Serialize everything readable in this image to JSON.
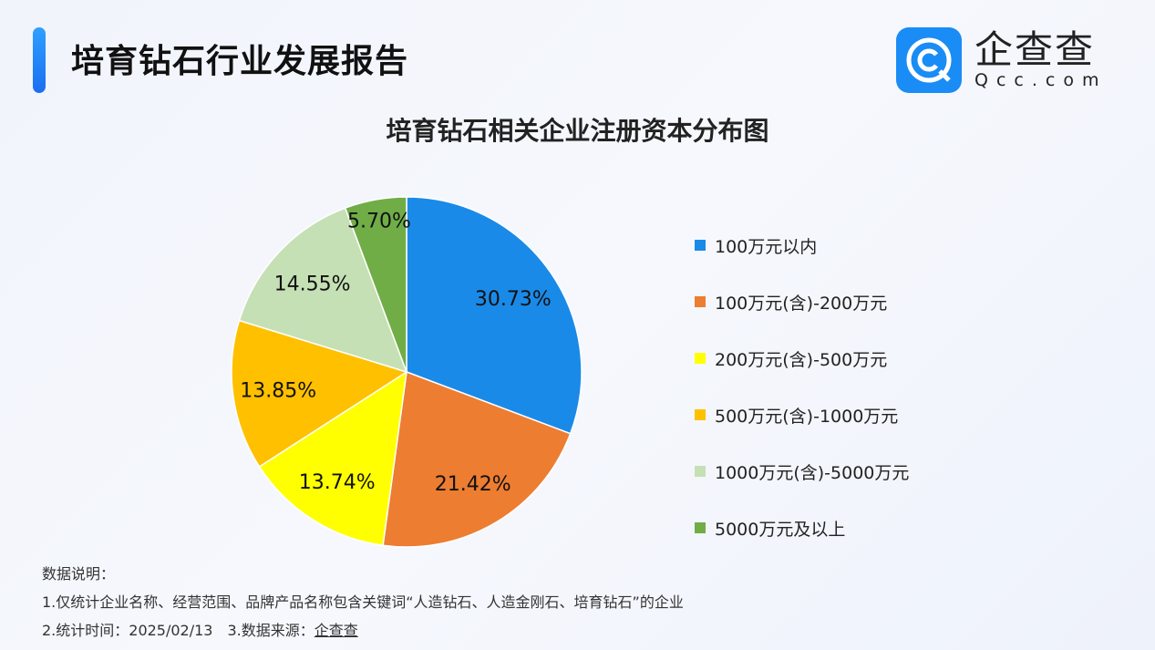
{
  "header": {
    "title": "培育钻石行业发展报告"
  },
  "logo": {
    "cn": "企查查",
    "en": "Qcc.com",
    "icon": "qcc-logo-icon"
  },
  "chart_data": {
    "type": "pie",
    "title": "培育钻石相关企业注册资本分布图",
    "legend_position": "right",
    "categories": [
      "100万元以内",
      "100万元(含)-200万元",
      "200万元(含)-500万元",
      "500万元(含)-1000万元",
      "1000万元(含)-5000万元",
      "5000万元及以上"
    ],
    "values": [
      30.73,
      21.42,
      13.74,
      13.85,
      14.55,
      5.7
    ],
    "labels": [
      "30.73%",
      "21.42%",
      "13.74%",
      "13.85%",
      "14.55%",
      "5.70%"
    ],
    "colors": [
      "#1a8ae8",
      "#ed7d31",
      "#ffff00",
      "#ffc000",
      "#c5e0b4",
      "#70ad47"
    ]
  },
  "notes": {
    "heading": "数据说明：",
    "line1": "1.仅统计企业名称、经营范围、品牌产品名称包含关键词“人造钻石、人造金刚石、培育钻石”的企业",
    "line2_prefix": "2.统计时间：2025/02/13　3.数据来源：",
    "source": "企查查"
  }
}
